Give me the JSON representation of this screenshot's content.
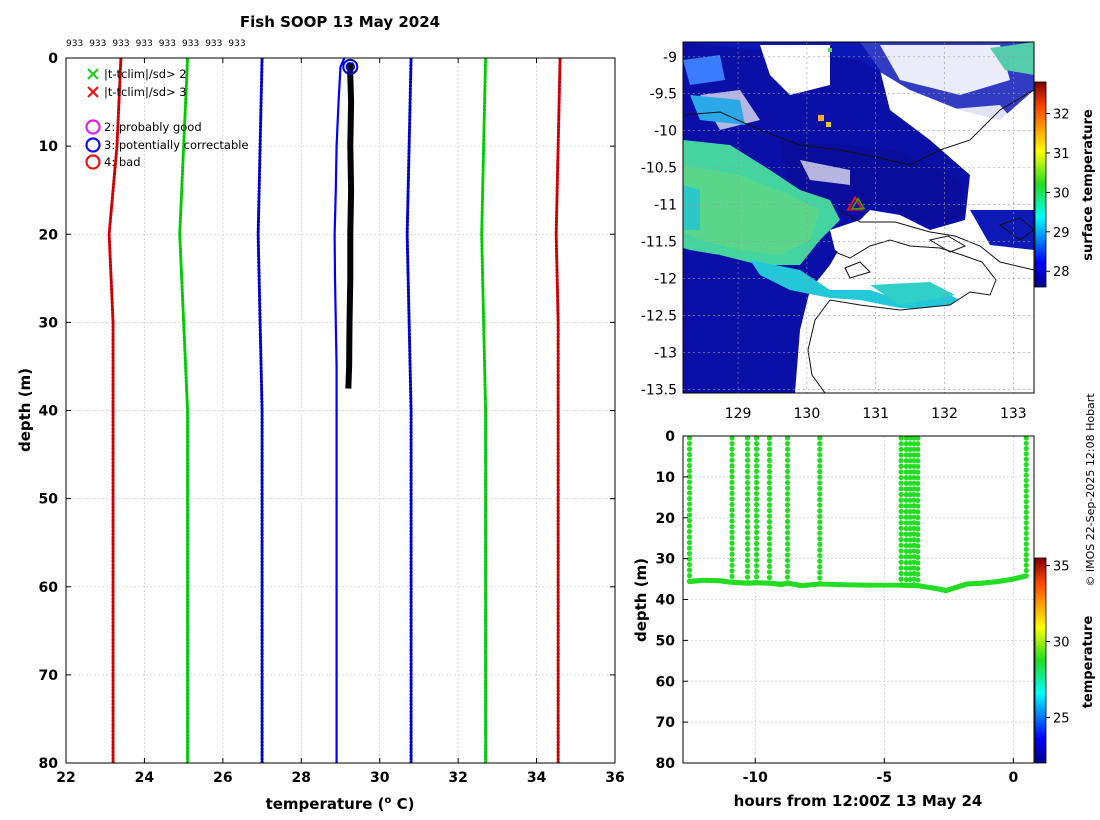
{
  "figure_title": "Fish SOOP 13 May 2024",
  "copyright": "© IMOS 22-Sep-2025 12:08 Hobart",
  "chart_data": [
    {
      "id": "profile",
      "type": "line",
      "title": "Fish SOOP 13 May 2024",
      "xlabel": "temperature (",
      "xlabel_sup": "o",
      "xlabel_end": " C)",
      "ylabel": "depth (m)",
      "xlim": [
        22,
        36
      ],
      "ylim": [
        80,
        0
      ],
      "xticks": [
        22,
        24,
        26,
        28,
        30,
        32,
        34,
        36
      ],
      "yticks": [
        0,
        10,
        20,
        30,
        40,
        50,
        60,
        70,
        80
      ],
      "top_counts": [
        "933",
        "933",
        "933",
        "933",
        "933",
        "933",
        "933",
        "933"
      ],
      "legend": [
        {
          "symbol": "x",
          "color": "#22cc22",
          "label": "|t-tclim|/sd> 2"
        },
        {
          "symbol": "x",
          "color": "#ee1111",
          "label": "|t-tclim|/sd> 3"
        },
        {
          "symbol": "o",
          "color": "#dd22dd",
          "label": "2: probably good"
        },
        {
          "symbol": "o",
          "color": "#1111ee",
          "label": "3: potentially correctable"
        },
        {
          "symbol": "o",
          "color": "#ee1111",
          "label": "4: bad"
        }
      ],
      "clim_depths": [
        0,
        10,
        20,
        30,
        40,
        50,
        60,
        70,
        80
      ],
      "clim_series": [
        {
          "name": "clim -3sd",
          "color": "#cc0000",
          "style": "dotted",
          "x": [
            23.4,
            23.3,
            23.1,
            23.2,
            23.2,
            23.2,
            23.2,
            23.2,
            23.2
          ]
        },
        {
          "name": "clim -2sd",
          "color": "#00cc00",
          "style": "dotted",
          "x": [
            25.1,
            25.0,
            24.9,
            25.0,
            25.1,
            25.1,
            25.1,
            25.1,
            25.1
          ]
        },
        {
          "name": "clim -1sd",
          "color": "#0000cc",
          "style": "dotted",
          "x": [
            27.0,
            26.95,
            26.9,
            26.95,
            27.0,
            27.0,
            27.0,
            27.0,
            27.0
          ]
        },
        {
          "name": "clim +1sd",
          "color": "#0000cc",
          "style": "dotted",
          "x": [
            30.8,
            30.75,
            30.7,
            30.75,
            30.8,
            30.8,
            30.8,
            30.8,
            30.8
          ]
        },
        {
          "name": "clim +2sd",
          "color": "#00cc00",
          "style": "dotted",
          "x": [
            32.7,
            32.65,
            32.6,
            32.65,
            32.7,
            32.7,
            32.7,
            32.7,
            32.7
          ]
        },
        {
          "name": "clim +3sd",
          "color": "#cc0000",
          "style": "dotted",
          "x": [
            34.6,
            34.55,
            34.5,
            34.55,
            34.55,
            34.55,
            34.55,
            34.55,
            34.55
          ]
        }
      ],
      "mean_series": {
        "name": "climatology mean",
        "color": "#0000ff",
        "depth": [
          0,
          1,
          5,
          10,
          15,
          20,
          25,
          30,
          35,
          38,
          40,
          50,
          60,
          70,
          80
        ],
        "x": [
          29.1,
          29.0,
          28.95,
          28.9,
          28.88,
          28.85,
          28.86,
          28.88,
          28.9,
          28.9,
          28.9,
          28.9,
          28.9,
          28.9,
          28.9
        ]
      },
      "profile_series": {
        "name": "observed profile",
        "color": "#000000",
        "depth": [
          0.5,
          2,
          5,
          10,
          15,
          20,
          25,
          30,
          35,
          37.5
        ],
        "x": [
          29.25,
          29.25,
          29.27,
          29.25,
          29.27,
          29.25,
          29.25,
          29.23,
          29.22,
          29.2
        ]
      },
      "flag_markers": [
        {
          "x": 29.25,
          "depth": 1,
          "color": "#0000cc",
          "label": "flag 3"
        }
      ]
    },
    {
      "id": "sst_map",
      "type": "heatmap",
      "xlim": [
        128.2,
        133.3
      ],
      "ylim": [
        -13.55,
        -8.8
      ],
      "xticks": [
        129,
        130,
        131,
        132,
        133
      ],
      "yticks": [
        -9,
        -9.5,
        -10,
        -10.5,
        -11,
        -11.5,
        -12,
        -12.5,
        -13,
        -13.5
      ],
      "colorbar_label": "surface temperature",
      "colorbar_range": [
        27.6,
        32.8
      ],
      "colorbar_ticks": [
        28,
        29,
        30,
        31,
        32
      ],
      "marker": {
        "lon": 130.7,
        "lat": -11.0,
        "symbol": "triangle",
        "color": "#ee1111"
      }
    },
    {
      "id": "depth_time",
      "type": "scatter",
      "xlabel": "hours from 12:00Z 13 May 24",
      "ylabel": "depth (m)",
      "xlim": [
        -12.8,
        0.8
      ],
      "ylim": [
        80,
        0
      ],
      "xticks": [
        -10,
        -5,
        0
      ],
      "yticks": [
        0,
        10,
        20,
        30,
        40,
        50,
        60,
        70,
        80
      ],
      "colorbar_label": "temperature",
      "colorbar_range": [
        22,
        35.5
      ],
      "colorbar_ticks": [
        25,
        30,
        35
      ],
      "point_color": "#22dd22",
      "casts": [
        {
          "t": -12.55,
          "bottom": 35.5
        },
        {
          "t": -10.9,
          "bottom": 35.7
        },
        {
          "t": -10.3,
          "bottom": 35.9
        },
        {
          "t": -9.95,
          "bottom": 35.8
        },
        {
          "t": -9.45,
          "bottom": 36.0
        },
        {
          "t": -8.75,
          "bottom": 35.9
        },
        {
          "t": -7.5,
          "bottom": 36.1
        },
        {
          "t": -4.35,
          "bottom": 36.4
        },
        {
          "t": -4.15,
          "bottom": 36.5
        },
        {
          "t": -4.0,
          "bottom": 36.5
        },
        {
          "t": -3.85,
          "bottom": 36.4
        },
        {
          "t": -3.7,
          "bottom": 36.6
        },
        {
          "t": 0.5,
          "bottom": 34.2
        }
      ],
      "seabed_track": {
        "t": [
          -12.55,
          -12.0,
          -11.4,
          -10.9,
          -10.3,
          -9.95,
          -9.45,
          -9.0,
          -8.75,
          -8.2,
          -7.5,
          -6.5,
          -5.5,
          -4.35,
          -3.7,
          -3.0,
          -2.6,
          -2.2,
          -1.8,
          -1.2,
          -0.6,
          0,
          0.5
        ],
        "depth": [
          35.6,
          35.3,
          35.4,
          35.8,
          36.0,
          35.9,
          36.0,
          36.3,
          36.0,
          36.6,
          36.2,
          36.4,
          36.5,
          36.5,
          36.6,
          37.3,
          37.8,
          37.0,
          36.2,
          36.0,
          35.6,
          35.0,
          34.2
        ]
      }
    }
  ]
}
